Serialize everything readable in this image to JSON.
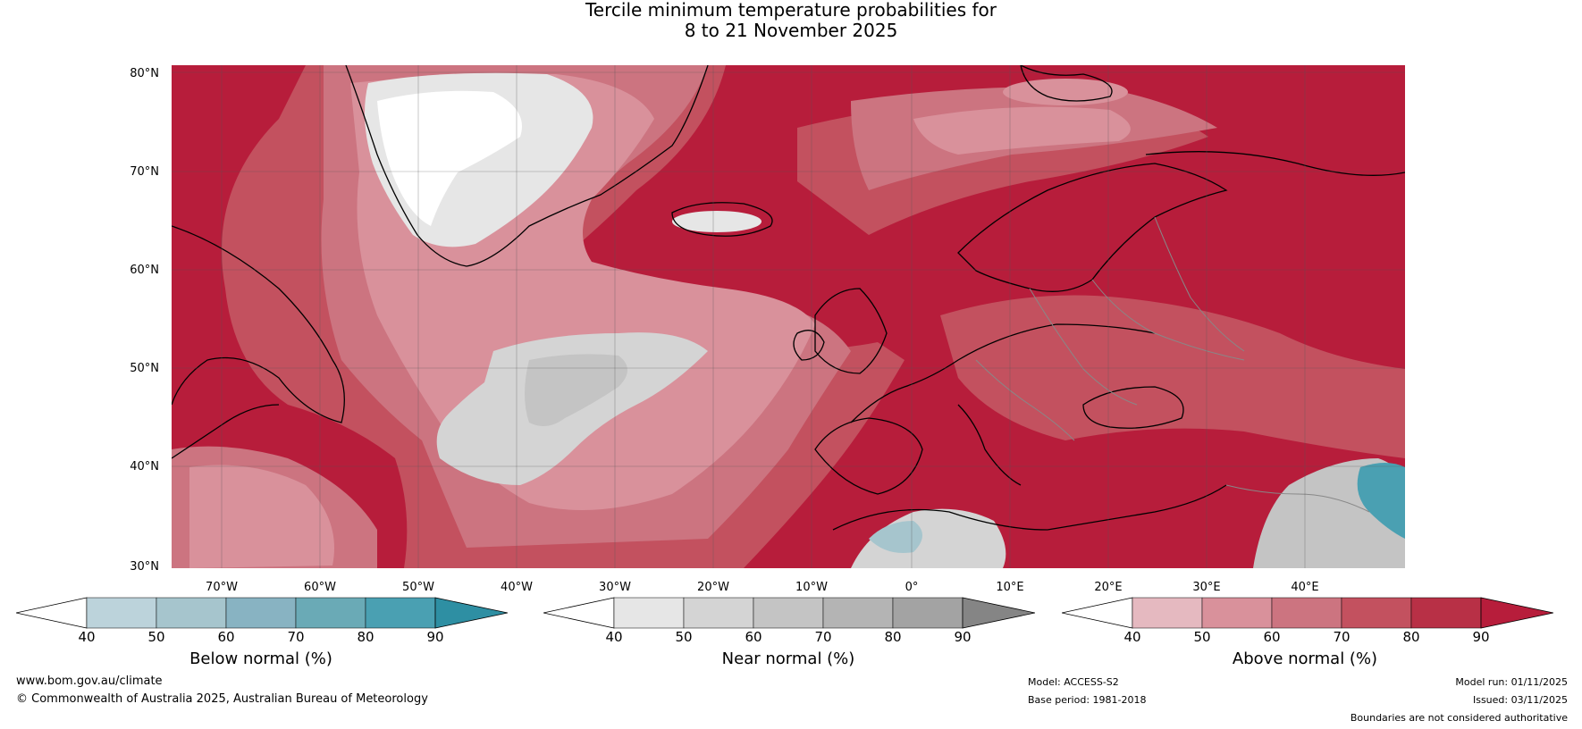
{
  "title": {
    "line1": "Tercile minimum temperature probabilities for",
    "line2": "8 to 21 November 2025"
  },
  "map": {
    "lat_labels": [
      "80°N",
      "70°N",
      "60°N",
      "50°N",
      "40°N",
      "30°N"
    ],
    "lon_labels": [
      "70°W",
      "60°W",
      "50°W",
      "40°W",
      "30°W",
      "20°W",
      "10°W",
      "0°",
      "10°E",
      "20°E",
      "30°E",
      "40°E"
    ]
  },
  "colorbars": [
    {
      "title": "Below normal (%)",
      "ticks": [
        "40",
        "50",
        "60",
        "70",
        "80",
        "90"
      ],
      "colors": [
        "#ffffff",
        "#bcd3db",
        "#a6c5cd",
        "#88b3c2",
        "#6aaab6",
        "#4aa0b2",
        "#2e8fa3"
      ]
    },
    {
      "title": "Near normal (%)",
      "ticks": [
        "40",
        "50",
        "60",
        "70",
        "80",
        "90"
      ],
      "colors": [
        "#ffffff",
        "#e6e6e6",
        "#d4d4d4",
        "#c4c4c4",
        "#b4b4b4",
        "#a3a3a3",
        "#858585"
      ]
    },
    {
      "title": "Above normal (%)",
      "ticks": [
        "40",
        "50",
        "60",
        "70",
        "80",
        "90"
      ],
      "colors": [
        "#ffffff",
        "#e5b9c0",
        "#d9919b",
        "#cc7480",
        "#c3515f",
        "#b83046",
        "#b71d3b"
      ]
    }
  ],
  "footer": {
    "website": "www.bom.gov.au/climate",
    "copyright": "© Commonwealth of Australia 2025, Australian Bureau of Meteorology",
    "model": "Model: ACCESS-S2",
    "base_period": "Base period: 1981-2018",
    "model_run": "Model run: 01/11/2025",
    "issued": "Issued: 03/11/2025",
    "disclaimer": "Boundaries are not considered authoritative"
  }
}
